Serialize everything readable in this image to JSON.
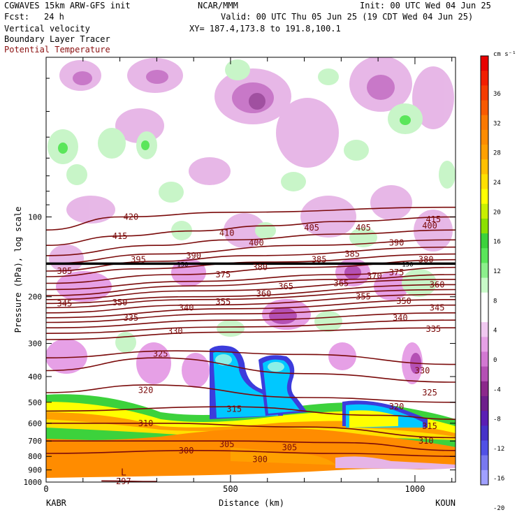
{
  "header": {
    "model": "CGWAVES 15km ARW-GFS init",
    "center": "NCAR/MMM",
    "init": "Init: 00 UTC Wed 04 Jun 25",
    "fcst_label": "Fcst:",
    "fcst_value": "24 h",
    "valid": "Valid: 00 UTC Thu 05 Jun 25 (19 CDT Wed 04 Jun 25)",
    "fields": [
      "Vertical velocity",
      "Boundary Layer Tracer",
      "Potential Temperature"
    ],
    "xy": "XY= 187.4,173.8 to 191.8,100.1"
  },
  "colors": {
    "theta_contour": "#7a0a0a",
    "theta_label": "#7a0a0a",
    "field3_label": "#8b1010",
    "tropopause": "#000000"
  },
  "axes": {
    "ylabel": "Pressure (hPa), log scale",
    "xlabel": "Distance (km)",
    "x_start_label": "KABR",
    "x_end_label": "KOUN",
    "x_ticks": [
      "0",
      "500",
      "1000"
    ],
    "y_ticks": [
      "100",
      "200",
      "300",
      "400",
      "500",
      "600",
      "700",
      "800",
      "900",
      "1000"
    ]
  },
  "colorbar": {
    "unit": "cm s⁻¹",
    "labels": [
      "36",
      "32",
      "28",
      "24",
      "20",
      "16",
      "12",
      "8",
      "4",
      "0",
      "-4",
      "-8",
      "-12",
      "-16",
      "-20"
    ],
    "colors": [
      "#e80000",
      "#f21e00",
      "#f53c00",
      "#f85a00",
      "#fa7800",
      "#fd8c00",
      "#ffa000",
      "#ffc000",
      "#ffe000",
      "#ffff00",
      "#c8f000",
      "#8ce000",
      "#3cd23c",
      "#5ae65a",
      "#8cf08c",
      "#c8fac8",
      "#ffffff",
      "#ffffff",
      "#f0c8f0",
      "#e6a0e6",
      "#d278d2",
      "#b450b4",
      "#8c288c",
      "#6e1e8c",
      "#5a1eb4",
      "#4632c8",
      "#5050e6",
      "#7878f0",
      "#a0a0ff"
    ]
  },
  "chart_data": {
    "type": "heatmap",
    "title": "Vertical velocity / Boundary Layer Tracer / Potential Temperature",
    "xlabel": "Distance (km)",
    "ylabel": "Pressure (hPa), log scale",
    "xlim": [
      0,
      1110
    ],
    "ylim": [
      1000,
      25
    ],
    "y_scale": "log",
    "x_ticks": [
      0,
      500,
      1000
    ],
    "y_ticks": [
      100,
      200,
      300,
      400,
      500,
      600,
      700,
      800,
      900,
      1000
    ],
    "colorbar_range": [
      -20,
      36
    ],
    "theta_contours": [
      {
        "value": 415,
        "points": [
          [
            0,
            128
          ],
          [
            200,
            118
          ],
          [
            400,
            113
          ],
          [
            600,
            108
          ],
          [
            800,
            104
          ],
          [
            1110,
            100
          ]
        ],
        "labels": [
          [
            200,
            118
          ],
          [
            1050,
            102
          ]
        ]
      },
      {
        "value": 420,
        "points": [
          [
            0,
            112
          ],
          [
            200,
            100
          ],
          [
            500,
            96
          ],
          [
            1110,
            92
          ]
        ],
        "labels": [
          [
            230,
            100
          ]
        ]
      },
      {
        "value": 410,
        "points": [
          [
            0,
            140
          ],
          [
            300,
            128
          ],
          [
            500,
            122
          ],
          [
            800,
            116
          ],
          [
            1110,
            112
          ]
        ],
        "labels": [
          [
            490,
            115
          ]
        ]
      },
      {
        "value": 405,
        "points": [
          [
            0,
            150
          ],
          [
            300,
            138
          ],
          [
            700,
            128
          ],
          [
            1110,
            122
          ]
        ],
        "labels": [
          [
            720,
            110
          ],
          [
            860,
            110
          ]
        ]
      },
      {
        "value": 400,
        "points": [
          [
            0,
            160
          ],
          [
            300,
            147
          ],
          [
            550,
            140
          ],
          [
            1110,
            130
          ]
        ],
        "labels": [
          [
            570,
            125
          ],
          [
            1040,
            108
          ]
        ]
      },
      {
        "value": 395,
        "points": [
          [
            0,
            168
          ],
          [
            250,
            157
          ],
          [
            600,
            148
          ],
          [
            1110,
            138
          ]
        ],
        "labels": [
          [
            250,
            145
          ]
        ]
      },
      {
        "value": 390,
        "points": [
          [
            0,
            178
          ],
          [
            350,
            165
          ],
          [
            700,
            155
          ],
          [
            1110,
            145
          ]
        ],
        "labels": [
          [
            400,
            140
          ],
          [
            950,
            125
          ]
        ]
      },
      {
        "value": 385,
        "points": [
          [
            0,
            188
          ],
          [
            400,
            175
          ],
          [
            800,
            165
          ],
          [
            1110,
            155
          ]
        ],
        "labels": [
          [
            50,
            160
          ],
          [
            740,
            145
          ],
          [
            830,
            138
          ]
        ]
      },
      {
        "value": 380,
        "points": [
          [
            0,
            198
          ],
          [
            400,
            182
          ],
          [
            800,
            172
          ],
          [
            1110,
            165
          ]
        ],
        "labels": [
          [
            580,
            155
          ],
          [
            1030,
            145
          ]
        ]
      },
      {
        "value": 375,
        "points": [
          [
            0,
            205
          ],
          [
            400,
            190
          ],
          [
            1110,
            172
          ]
        ],
        "labels": [
          [
            480,
            165
          ],
          [
            950,
            162
          ]
        ]
      },
      {
        "value": 370,
        "points": [
          [
            0,
            212
          ],
          [
            400,
            200
          ],
          [
            1110,
            180
          ]
        ],
        "labels": [
          [
            890,
            167
          ]
        ]
      },
      {
        "value": 365,
        "points": [
          [
            0,
            220
          ],
          [
            400,
            205
          ],
          [
            1110,
            188
          ]
        ],
        "labels": [
          [
            650,
            183
          ],
          [
            800,
            178
          ]
        ]
      },
      {
        "value": 360,
        "points": [
          [
            0,
            230
          ],
          [
            400,
            215
          ],
          [
            1110,
            196
          ]
        ],
        "labels": [
          [
            590,
            195
          ],
          [
            1060,
            180
          ]
        ]
      },
      {
        "value": 355,
        "points": [
          [
            0,
            240
          ],
          [
            500,
            222
          ],
          [
            1110,
            205
          ]
        ],
        "labels": [
          [
            480,
            209
          ],
          [
            860,
            200
          ]
        ]
      },
      {
        "value": 350,
        "points": [
          [
            0,
            250
          ],
          [
            500,
            232
          ],
          [
            1110,
            215
          ]
        ],
        "labels": [
          [
            200,
            210
          ],
          [
            970,
            208
          ]
        ]
      },
      {
        "value": 345,
        "points": [
          [
            0,
            262
          ],
          [
            500,
            245
          ],
          [
            1110,
            230
          ]
        ],
        "labels": [
          [
            50,
            212
          ],
          [
            1060,
            220
          ]
        ]
      },
      {
        "value": 340,
        "points": [
          [
            0,
            275
          ],
          [
            500,
            260
          ],
          [
            1110,
            245
          ]
        ],
        "labels": [
          [
            380,
            220
          ],
          [
            960,
            240
          ]
        ]
      },
      {
        "value": 335,
        "points": [
          [
            0,
            290
          ],
          [
            500,
            272
          ],
          [
            1110,
            262
          ]
        ],
        "labels": [
          [
            230,
            240
          ],
          [
            1050,
            265
          ]
        ]
      },
      {
        "value": 330,
        "points": [
          [
            0,
            340
          ],
          [
            350,
            320
          ],
          [
            700,
            330
          ],
          [
            1110,
            360
          ]
        ],
        "labels": [
          [
            350,
            270
          ],
          [
            1020,
            380
          ]
        ]
      },
      {
        "value": 325,
        "points": [
          [
            0,
            380
          ],
          [
            300,
            340
          ],
          [
            700,
            390
          ],
          [
            1110,
            420
          ]
        ],
        "labels": [
          [
            310,
            328
          ],
          [
            1040,
            460
          ]
        ]
      },
      {
        "value": 320,
        "points": [
          [
            0,
            460
          ],
          [
            280,
            430
          ],
          [
            700,
            480
          ],
          [
            1110,
            500
          ]
        ],
        "labels": [
          [
            270,
            450
          ],
          [
            950,
            520
          ]
        ]
      },
      {
        "value": 315,
        "points": [
          [
            0,
            540
          ],
          [
            500,
            520
          ],
          [
            900,
            560
          ],
          [
            1110,
            580
          ]
        ],
        "labels": [
          [
            510,
            530
          ],
          [
            1040,
            615
          ]
        ]
      },
      {
        "value": 310,
        "points": [
          [
            0,
            600
          ],
          [
            300,
            600
          ],
          [
            700,
            620
          ],
          [
            1110,
            680
          ]
        ],
        "labels": [
          [
            270,
            600
          ],
          [
            1030,
            700
          ]
        ]
      },
      {
        "value": 305,
        "points": [
          [
            0,
            700
          ],
          [
            500,
            700
          ],
          [
            800,
            710
          ],
          [
            1110,
            760
          ]
        ],
        "labels": [
          [
            490,
            720
          ],
          [
            660,
            740
          ]
        ]
      },
      {
        "value": 300,
        "points": [
          [
            0,
            780
          ],
          [
            400,
            760
          ],
          [
            800,
            780
          ],
          [
            1110,
            800
          ]
        ],
        "labels": [
          [
            380,
            760
          ],
          [
            580,
            820
          ]
        ]
      },
      {
        "value": 297,
        "points": [
          [
            150,
            990
          ],
          [
            300,
            995
          ]
        ],
        "labels": [
          [
            210,
            995
          ]
        ]
      }
    ],
    "tropopause_marker": {
      "pressure_hPa": 150,
      "labels": [
        "150",
        "150"
      ]
    },
    "low_label": {
      "text": "L",
      "x_km": 210,
      "pressure_hPa": 920
    }
  }
}
